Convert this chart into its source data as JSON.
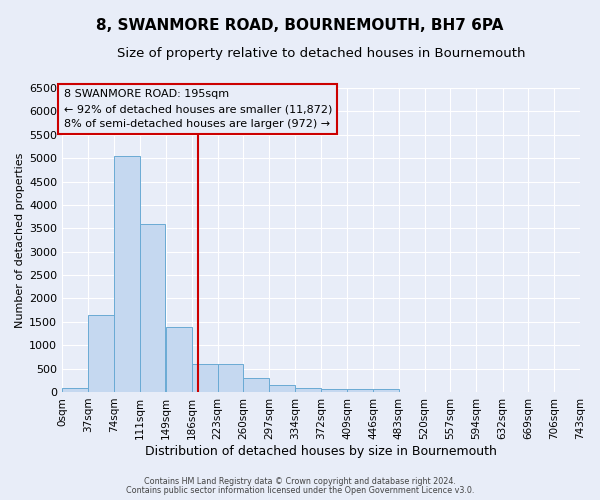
{
  "title": "8, SWANMORE ROAD, BOURNEMOUTH, BH7 6PA",
  "subtitle": "Size of property relative to detached houses in Bournemouth",
  "xlabel": "Distribution of detached houses by size in Bournemouth",
  "ylabel": "Number of detached properties",
  "bin_labels": [
    "0sqm",
    "37sqm",
    "74sqm",
    "111sqm",
    "149sqm",
    "186sqm",
    "223sqm",
    "260sqm",
    "297sqm",
    "334sqm",
    "372sqm",
    "409sqm",
    "446sqm",
    "483sqm",
    "520sqm",
    "557sqm",
    "594sqm",
    "632sqm",
    "669sqm",
    "706sqm",
    "743sqm"
  ],
  "bin_edges": [
    0,
    37,
    74,
    111,
    149,
    186,
    223,
    260,
    297,
    334,
    372,
    409,
    446,
    483,
    520,
    557,
    594,
    632,
    669,
    706,
    743
  ],
  "bar_heights": [
    75,
    1650,
    5050,
    3600,
    1400,
    600,
    600,
    290,
    145,
    90,
    70,
    55,
    70,
    0,
    0,
    0,
    0,
    0,
    0,
    0
  ],
  "bar_color": "#c5d8f0",
  "bar_edge_color": "#6aaad4",
  "vline_x": 195,
  "vline_color": "#cc0000",
  "ylim_max": 6500,
  "yticks": [
    0,
    500,
    1000,
    1500,
    2000,
    2500,
    3000,
    3500,
    4000,
    4500,
    5000,
    5500,
    6000,
    6500
  ],
  "annotation_text": "8 SWANMORE ROAD: 195sqm\n← 92% of detached houses are smaller (11,872)\n8% of semi-detached houses are larger (972) →",
  "annot_box_color": "#cc0000",
  "footer1": "Contains HM Land Registry data © Crown copyright and database right 2024.",
  "footer2": "Contains public sector information licensed under the Open Government Licence v3.0.",
  "bg_color": "#e8edf8",
  "grid_color": "#ffffff",
  "title_fontsize": 11,
  "subtitle_fontsize": 9.5,
  "ylabel_fontsize": 8,
  "xlabel_fontsize": 9,
  "tick_fontsize": 7.5,
  "ytick_fontsize": 8
}
